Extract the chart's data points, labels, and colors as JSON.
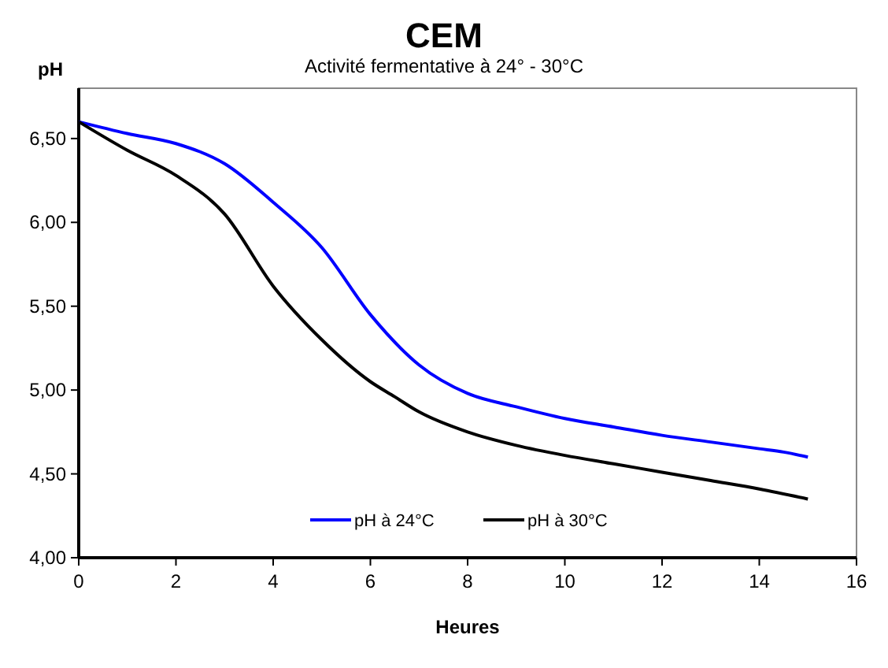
{
  "chart_data": {
    "type": "line",
    "title": "CEM",
    "subtitle": "Activité fermentative à 24° - 30°C",
    "xlabel": "Heures",
    "ylabel": "pH",
    "xlim": [
      0,
      16
    ],
    "xticks": [
      0,
      2,
      4,
      6,
      8,
      10,
      12,
      14,
      16
    ],
    "ylim": [
      4,
      6.8
    ],
    "yticks": [
      {
        "value": 4,
        "label": "4,00"
      },
      {
        "value": 4.5,
        "label": "4,50"
      },
      {
        "value": 5,
        "label": "5,00"
      },
      {
        "value": 5.5,
        "label": "5,50"
      },
      {
        "value": 6,
        "label": "6,00"
      },
      {
        "value": 6.5,
        "label": "6,50"
      }
    ],
    "grid": false,
    "legend": "bottom",
    "marker": "none",
    "line_style": "solid",
    "series": [
      {
        "name": "pH à 24°C",
        "color": "#0000ff",
        "x": [
          0,
          1,
          2,
          3,
          4,
          5,
          6,
          7,
          8,
          9,
          10,
          11,
          12,
          13,
          14,
          14.5,
          15
        ],
        "values": [
          6.6,
          6.53,
          6.47,
          6.35,
          6.12,
          5.85,
          5.45,
          5.15,
          4.98,
          4.9,
          4.83,
          4.78,
          4.73,
          4.69,
          4.65,
          4.63,
          4.6
        ]
      },
      {
        "name": "pH à 30°C",
        "color": "#000000",
        "x": [
          0,
          1,
          2,
          3,
          4,
          5,
          6,
          6.5,
          7,
          8,
          9,
          10,
          11,
          12,
          13,
          14,
          15
        ],
        "values": [
          6.6,
          6.43,
          6.28,
          6.05,
          5.62,
          5.3,
          5.05,
          4.96,
          4.87,
          4.75,
          4.67,
          4.61,
          4.56,
          4.51,
          4.46,
          4.41,
          4.35
        ]
      }
    ]
  }
}
